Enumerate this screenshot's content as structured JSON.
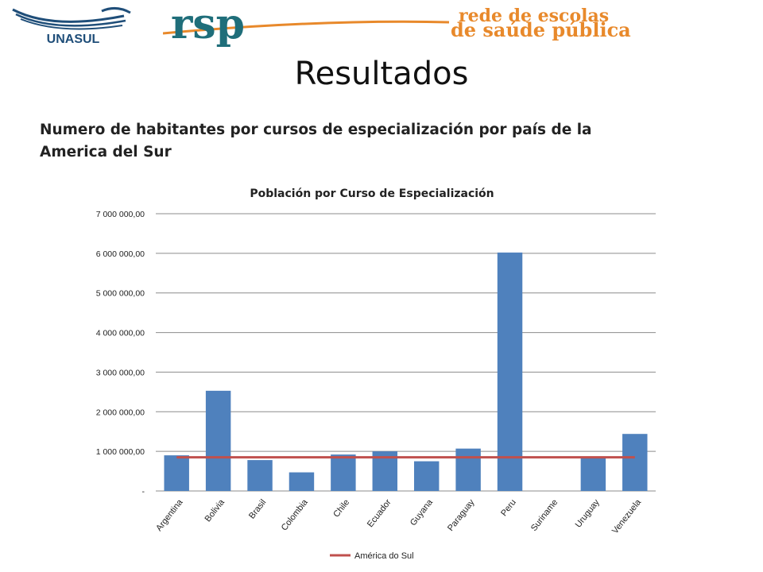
{
  "header": {
    "logo_left": "UNASUL",
    "logo_right": "rsp",
    "logo_right_tagline_1": "rede de escolas",
    "logo_right_tagline_2": "de saúde pública"
  },
  "slide": {
    "title": "Resultados",
    "subtitle": "Numero de habitantes por cursos de especialización por país de la America del Sur"
  },
  "colors": {
    "bar": "#4F81BD",
    "reference_line": "#C0504D",
    "grid": "#8C8C8C",
    "logo_teal": "#1F6E7A",
    "logo_orange": "#E8892B"
  },
  "chart_data": {
    "type": "bar",
    "title": "Población por Curso de Especialización",
    "categories": [
      "Argentina",
      "Bolivia",
      "Brasil",
      "Colombia",
      "Chile",
      "Ecuador",
      "Guyana",
      "Paraguay",
      "Peru",
      "Suriname",
      "Uruguay",
      "Venezuela"
    ],
    "series": [
      {
        "values": [
          900000,
          2530000,
          780000,
          470000,
          920000,
          1000000,
          750000,
          1070000,
          6020000,
          0,
          840000,
          1440000
        ]
      },
      {
        "name": "América do Sul",
        "type": "line",
        "values": [
          850000,
          850000,
          850000,
          850000,
          850000,
          850000,
          850000,
          850000,
          850000,
          850000,
          850000,
          850000
        ]
      }
    ],
    "ylim": [
      0,
      7000000
    ],
    "yticks": [
      0,
      1000000,
      2000000,
      3000000,
      4000000,
      5000000,
      6000000,
      7000000
    ],
    "ytick_labels": [
      "-",
      "1 000 000,00",
      "2 000 000,00",
      "3 000 000,00",
      "4 000 000,00",
      "5 000 000,00",
      "6 000 000,00",
      "7 000 000,00"
    ],
    "grid": true,
    "legend_position": "bottom"
  }
}
